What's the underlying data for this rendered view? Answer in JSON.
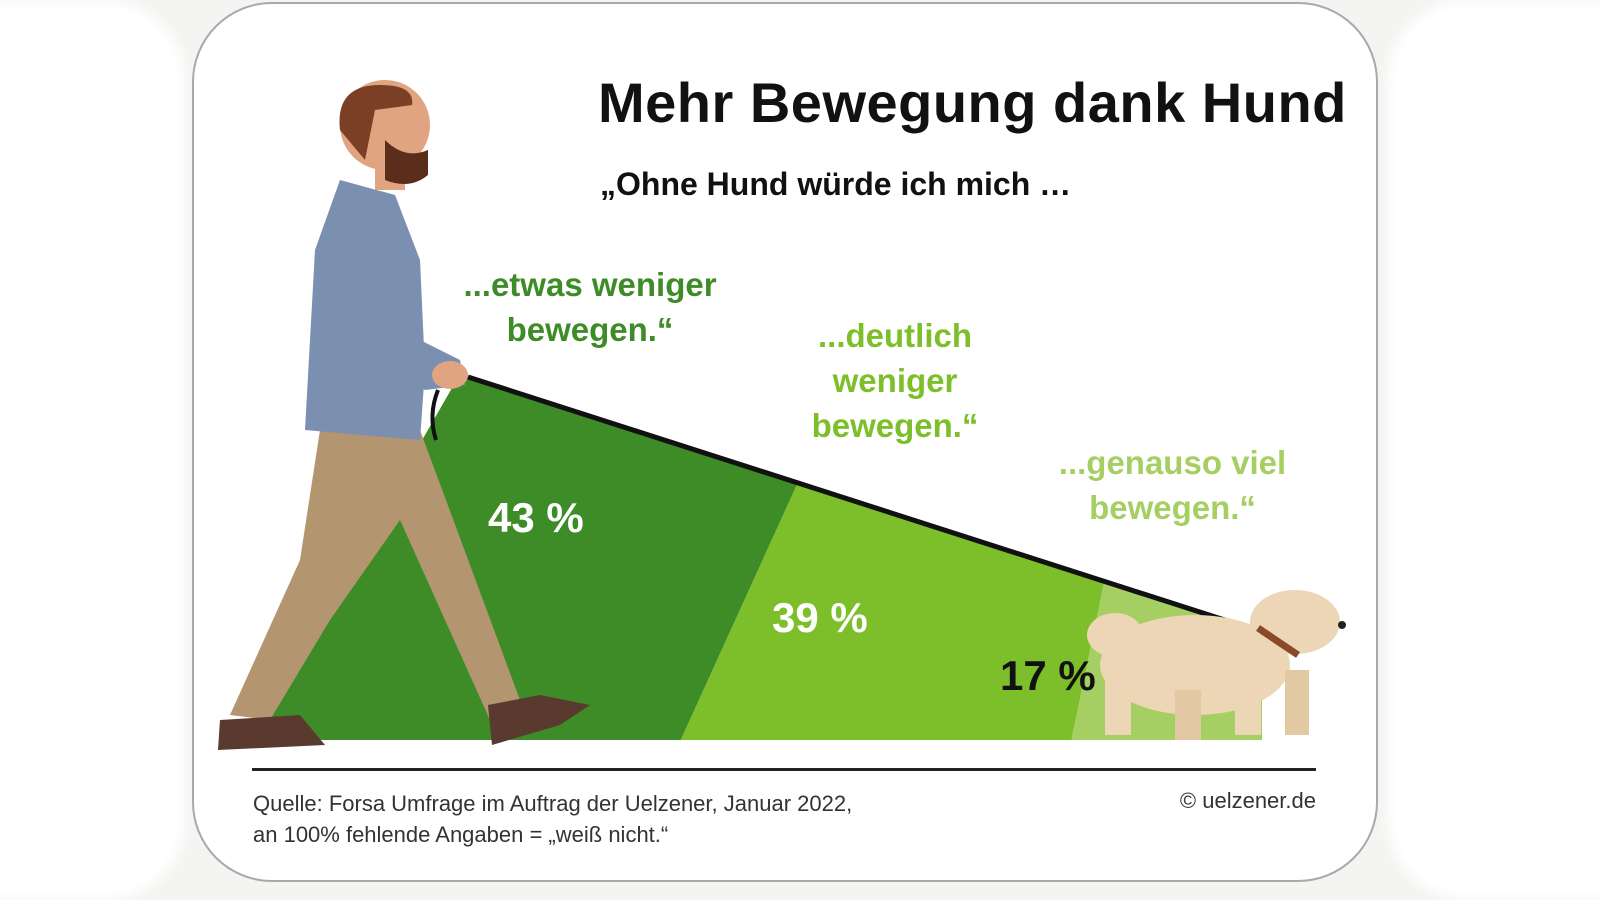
{
  "title": "Mehr Bewegung dank Hund",
  "subtitle": "„Ohne Hund würde ich mich …",
  "chart_data": {
    "type": "area",
    "title": "Mehr Bewegung dank Hund",
    "subtitle": "„Ohne Hund würde ich mich …",
    "categories": [
      "...etwas weniger bewegen.“",
      "...deutlich weniger bewegen.“",
      "...genauso viel bewegen.“"
    ],
    "values": [
      43,
      39,
      17
    ],
    "value_labels": [
      "43 %",
      "39 %",
      "17 %"
    ],
    "unit": "%",
    "colors": [
      "#3d8c28",
      "#7cbf2a",
      "#a6cf63"
    ]
  },
  "labels": {
    "cat1_line1": "...etwas weniger",
    "cat1_line2": "bewegen.“",
    "cat2_line1": "...deutlich",
    "cat2_line2": "weniger",
    "cat2_line3": "bewegen.“",
    "cat3_line1": "...genauso viel",
    "cat3_line2": "bewegen.“"
  },
  "footer": {
    "source_line1": "Quelle: Forsa Umfrage im Auftrag der Uelzener, Januar 2022,",
    "source_line2": "an 100% fehlende Angaben = „weiß nicht.“",
    "copyright": "© uelzener.de"
  },
  "illustration": {
    "person": "man-walking-icon",
    "animal": "dog-icon",
    "leash": "leash"
  }
}
